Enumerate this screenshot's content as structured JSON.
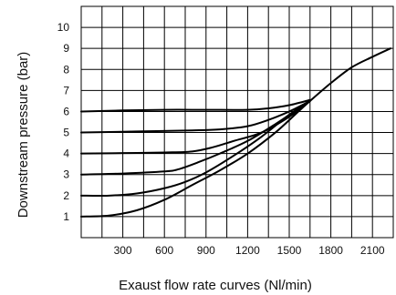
{
  "chart_data": {
    "type": "line",
    "title": "",
    "xlabel": "Exaust flow rate curves (Nl/min)",
    "ylabel": "Downstream pressure (bar)",
    "xlim": [
      0,
      2250
    ],
    "ylim": [
      0,
      11
    ],
    "x_ticks": [
      "300",
      "600",
      "900",
      "1200",
      "1500",
      "1800",
      "2100"
    ],
    "y_ticks": [
      "1",
      "2",
      "3",
      "4",
      "5",
      "6",
      "7",
      "8",
      "9",
      "10"
    ],
    "grid": true,
    "series": [
      {
        "x": [
          0,
          200,
          400,
          600,
          800,
          1000,
          1200,
          1400,
          1550,
          1650,
          1800,
          1950,
          2100,
          2230
        ],
        "values": [
          1.0,
          1.05,
          1.3,
          1.8,
          2.5,
          3.2,
          4.0,
          5.0,
          5.9,
          6.5,
          7.35,
          8.1,
          8.6,
          9.0
        ]
      },
      {
        "x": [
          0,
          200,
          400,
          600,
          750,
          900,
          1100,
          1300,
          1500,
          1650
        ],
        "values": [
          2.0,
          2.0,
          2.1,
          2.35,
          2.65,
          3.1,
          3.9,
          4.8,
          5.85,
          6.5
        ]
      },
      {
        "x": [
          0,
          300,
          600,
          700,
          850,
          1000,
          1200,
          1400,
          1650
        ],
        "values": [
          3.0,
          3.05,
          3.15,
          3.25,
          3.6,
          4.0,
          4.6,
          5.4,
          6.5
        ]
      },
      {
        "x": [
          0,
          300,
          600,
          800,
          950,
          1100,
          1300,
          1500,
          1650
        ],
        "values": [
          4.0,
          4.02,
          4.05,
          4.1,
          4.3,
          4.6,
          5.0,
          5.75,
          6.5
        ]
      },
      {
        "x": [
          0,
          400,
          800,
          1000,
          1200,
          1350,
          1500,
          1650
        ],
        "values": [
          5.0,
          5.05,
          5.1,
          5.15,
          5.3,
          5.6,
          6.0,
          6.5
        ]
      },
      {
        "x": [
          0,
          300,
          600,
          900,
          1200,
          1350,
          1500,
          1650
        ],
        "values": [
          6.0,
          6.05,
          6.08,
          6.08,
          6.08,
          6.15,
          6.3,
          6.55
        ]
      }
    ],
    "style": {
      "line_color": "#000000",
      "grid_color": "#000000",
      "background": "#ffffff"
    }
  }
}
